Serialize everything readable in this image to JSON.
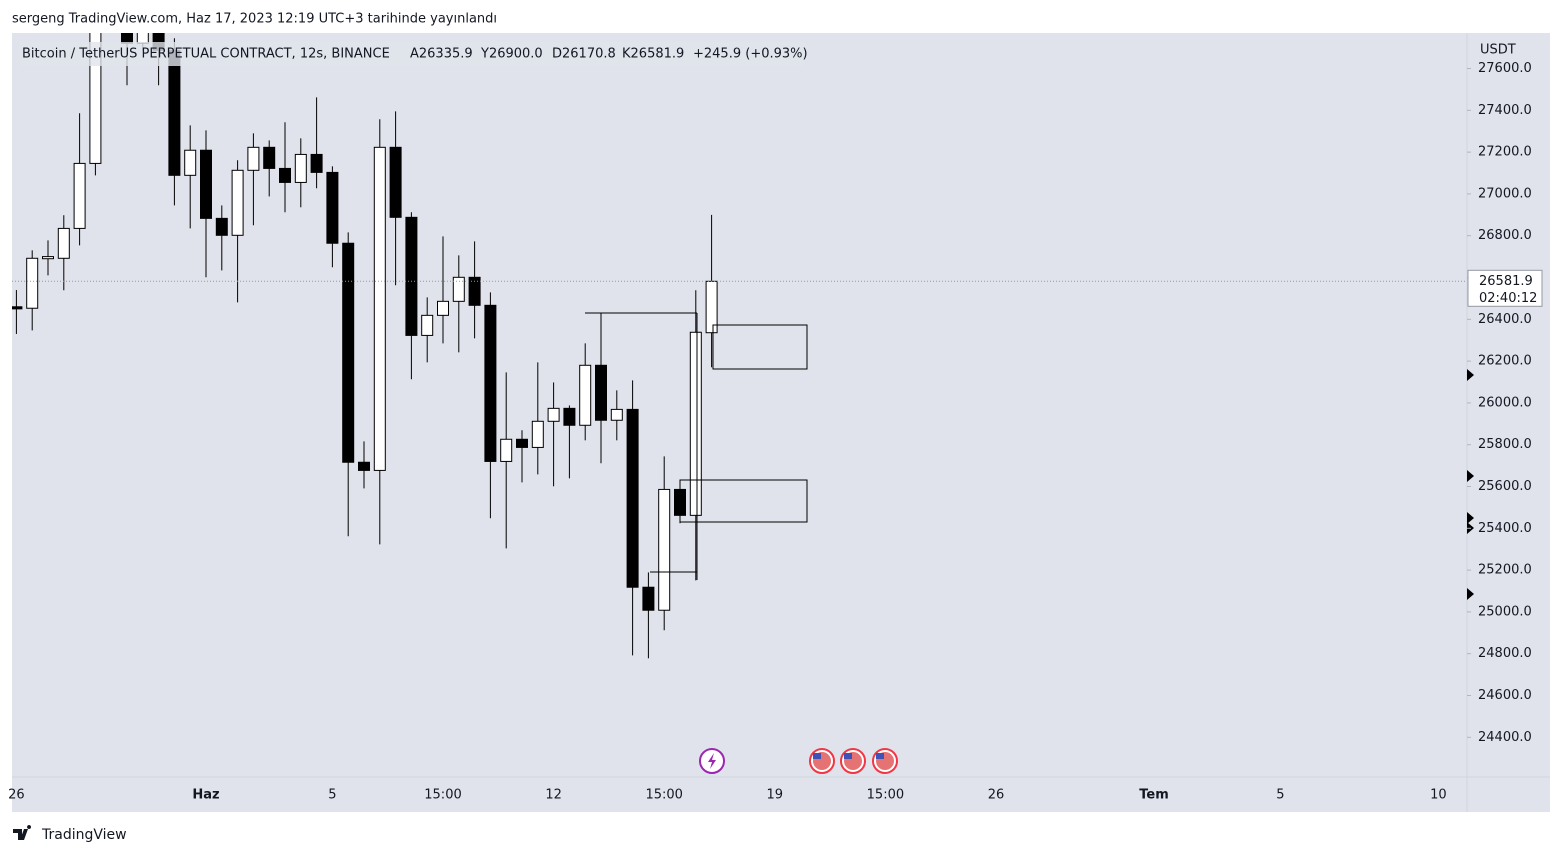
{
  "attribution": "sergeng TradingView.com, Haz 17, 2023 12:19 UTC+3 tarihinde yayınlandı",
  "footer": "TradingView",
  "header": {
    "symbol": "Bitcoin / TetherUS PERPETUAL CONTRACT, 12s, BINANCE",
    "ohlc": [
      "A26335.9",
      "Y26900.0",
      "D26170.8",
      "K26581.9"
    ],
    "change": "+245.9 (+0.93%)"
  },
  "chart_data": {
    "type": "candlestick",
    "currency": "USDT",
    "countdown": "02:40:12",
    "up_color": "#ffffff",
    "down_color": "#000000",
    "categories": [
      "26",
      null,
      null,
      null,
      null,
      null,
      null,
      null,
      null,
      null,
      null,
      null,
      "Haz",
      null,
      null,
      null,
      null,
      null,
      null,
      null,
      "5",
      null,
      null,
      null,
      null,
      null,
      null,
      "15:00",
      null,
      null,
      null,
      null,
      null,
      null,
      "12",
      null,
      null,
      null,
      null,
      null,
      null,
      "15:00",
      null,
      null,
      null,
      null,
      null,
      null,
      "19",
      null,
      null,
      null,
      null,
      null,
      null,
      "15:00",
      null,
      null,
      null,
      null,
      null,
      null,
      "26",
      null,
      null,
      null,
      null,
      null,
      null,
      null,
      null,
      null,
      "Tem",
      null,
      null,
      null,
      null,
      null,
      null,
      null,
      "5",
      null,
      null,
      null,
      null,
      null,
      null,
      null,
      null,
      null,
      "10",
      null
    ],
    "open": [
      26460,
      26453,
      26690,
      26692,
      26835,
      27146,
      27800,
      27950,
      27721,
      27800,
      27687,
      27089,
      27209,
      26883,
      26802,
      27113,
      27223,
      27122,
      27055,
      27189,
      27103,
      26764,
      25716,
      25677,
      27223,
      26888,
      26323,
      26419,
      26486,
      26601,
      26467,
      25720,
      25826,
      25787,
      25912,
      25974,
      25893,
      26180,
      25917,
      25969,
      25118,
      25008,
      25586,
      25462,
      26335.9,
      null,
      null,
      null,
      null,
      null,
      null,
      null,
      null,
      null,
      null,
      null,
      null,
      null,
      null,
      null,
      null,
      null,
      null,
      null,
      null,
      null,
      null,
      null,
      null,
      null,
      null,
      null,
      null,
      null,
      null,
      null,
      null,
      null,
      null,
      null,
      null,
      null,
      null,
      null,
      null,
      null,
      null,
      null,
      null,
      null,
      null,
      null
    ],
    "high": [
      26540,
      26730,
      26778,
      26898,
      27386,
      27850,
      28050,
      28000,
      27850,
      27850,
      27745,
      27328,
      27304,
      26945,
      27161,
      27290,
      27256,
      27343,
      27266,
      27462,
      27132,
      26816,
      25816,
      27357,
      27395,
      26912,
      26505,
      26797,
      26706,
      26773,
      26529,
      26146,
      25869,
      26194,
      26098,
      25988,
      26285,
      26429,
      26060,
      26108,
      25189,
      25744,
      25630,
      26539,
      26900.0,
      null,
      null,
      null,
      null,
      null,
      null,
      null,
      null,
      null,
      null,
      null,
      null,
      null,
      null,
      null,
      null,
      null,
      null,
      null,
      null,
      null,
      null,
      null,
      null,
      null,
      null,
      null,
      null,
      null,
      null,
      null,
      null,
      null,
      null,
      null,
      null,
      null,
      null,
      null,
      null,
      null,
      null,
      null,
      null,
      null,
      null,
      null
    ],
    "low": [
      26330,
      26347,
      26610,
      26539,
      26754,
      27089,
      27790,
      27520,
      27687,
      27520,
      26945,
      26835,
      26601,
      26634,
      26481,
      26850,
      26988,
      26912,
      26936,
      27027,
      26649,
      25362,
      25591,
      25323,
      26563,
      26113,
      26194,
      26285,
      26242,
      26309,
      25448,
      25304,
      25620,
      25658,
      25601,
      25639,
      25821,
      25711,
      25821,
      24792,
      24778,
      24912,
      25424,
      25151,
      26170.8,
      null,
      null,
      null,
      null,
      null,
      null,
      null,
      null,
      null,
      null,
      null,
      null,
      null,
      null,
      null,
      null,
      null,
      null,
      null,
      null,
      null,
      null,
      null,
      null,
      null,
      null,
      null,
      null,
      null,
      null,
      null,
      null,
      null,
      null,
      null,
      null,
      null,
      null,
      null,
      null,
      null,
      null,
      null,
      null,
      null,
      null,
      null
    ],
    "close": [
      26450,
      26692,
      26700,
      26835,
      27146,
      27780,
      27950,
      27721,
      27800,
      27687,
      27089,
      27209,
      26883,
      26802,
      27113,
      27223,
      27122,
      27055,
      27189,
      27103,
      26764,
      25716,
      25677,
      27223,
      26888,
      26323,
      26419,
      26486,
      26601,
      26467,
      25720,
      25826,
      25787,
      25912,
      25974,
      25893,
      26180,
      25917,
      25969,
      25118,
      25008,
      25586,
      25462,
      26338,
      26581.9,
      null,
      null,
      null,
      null,
      null,
      null,
      null,
      null,
      null,
      null,
      null,
      null,
      null,
      null,
      null,
      null,
      null,
      null,
      null,
      null,
      null,
      null,
      null,
      null,
      null,
      null,
      null,
      null,
      null,
      null,
      null,
      null,
      null,
      null,
      null,
      null,
      null,
      null,
      null,
      null,
      null,
      null,
      null,
      null,
      null,
      null,
      null
    ],
    "ylim": [
      24210,
      27770
    ],
    "yticks": [
      {
        "value": 24400,
        "label": "24400.0"
      },
      {
        "value": 24600,
        "label": "24600.0"
      },
      {
        "value": 24800,
        "label": "24800.0"
      },
      {
        "value": 25000,
        "label": "25000.0"
      },
      {
        "value": 25200,
        "label": "25200.0"
      },
      {
        "value": 25400,
        "label": "25400.0"
      },
      {
        "value": 25600,
        "label": "25600.0"
      },
      {
        "value": 25800,
        "label": "25800.0"
      },
      {
        "value": 26000,
        "label": "26000.0"
      },
      {
        "value": 26200,
        "label": "26200.0"
      },
      {
        "value": 26400,
        "label": "26400.0"
      },
      {
        "value": 26600,
        "label": "26600.0"
      },
      {
        "value": 26800,
        "label": "26800.0"
      },
      {
        "value": 27000,
        "label": "27000.0"
      },
      {
        "value": 27200,
        "label": "27200.0"
      },
      {
        "value": 27400,
        "label": "27400.0"
      },
      {
        "value": 27600,
        "label": "27600.0"
      }
    ],
    "grid": false
  }
}
